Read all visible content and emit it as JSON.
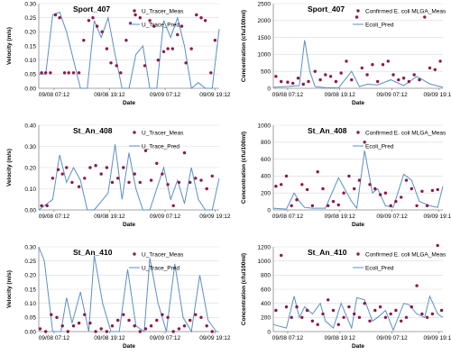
{
  "chart_data": [
    {
      "type": "line",
      "title": "Sport_407",
      "xlabel": "Date",
      "ylabel": "Velocity (m/s)",
      "xticks": [
        "09/08 07:12",
        "09/08 19:12",
        "09/09 07:12",
        "09/09 19:12"
      ],
      "ylim": [
        0,
        0.3
      ],
      "yticks": [
        "0.00",
        "0.05",
        "0.10",
        "0.15",
        "0.20",
        "0.25",
        "0.30"
      ],
      "legend_position": "top-right",
      "series": [
        {
          "name": "U_Tracer_Meas",
          "kind": "scatter",
          "color": "#8b1a4a",
          "x": [
            0.1,
            0.25,
            0.42,
            0.6,
            0.75,
            0.93,
            1.08,
            1.25,
            1.45,
            1.62,
            1.8,
            1.95,
            2.1,
            2.28,
            2.45,
            2.6,
            2.8,
            2.95,
            3.15,
            3.3,
            3.48,
            3.65,
            3.82,
            4.0,
            4.15,
            4.3,
            4.5,
            4.65,
            4.82,
            5.0,
            5.15,
            5.3,
            5.5,
            5.68,
            5.85,
            6.0,
            6.2,
            6.35
          ],
          "y": [
            0.055,
            0.055,
            0.055,
            0.26,
            0.25,
            0.055,
            0.055,
            0.055,
            0.055,
            0.17,
            0.24,
            0.25,
            0.22,
            0.2,
            0.14,
            0.09,
            0.08,
            0.055,
            0.17,
            0.23,
            0.26,
            0.25,
            0.08,
            0.24,
            0.22,
            0.1,
            0.13,
            0.14,
            0.14,
            0.19,
            0.22,
            0.09,
            0.14,
            0.26,
            0.25,
            0.24,
            0.055,
            0.17
          ]
        },
        {
          "name": "U_Trace_Pred",
          "kind": "line",
          "color": "#5b8fc7",
          "x": [
            0,
            0.25,
            0.5,
            0.75,
            1.0,
            1.25,
            1.5,
            1.75,
            2.0,
            2.25,
            2.5,
            2.75,
            3.0,
            3.25,
            3.5,
            3.75,
            4.0,
            4.25,
            4.5,
            4.75,
            5.0,
            5.25,
            5.5,
            5.75,
            6.0,
            6.25,
            6.5
          ],
          "y": [
            0.05,
            0.05,
            0.26,
            0.27,
            0.2,
            0.1,
            0.0,
            0.0,
            0.24,
            0.18,
            0.25,
            0.12,
            0.0,
            0.0,
            0.12,
            0.15,
            0.0,
            0.0,
            0.24,
            0.18,
            0.25,
            0.15,
            0.0,
            0.02,
            0.0,
            0.0,
            0.21
          ]
        }
      ]
    },
    {
      "type": "line",
      "title": "Sport_407",
      "xlabel": "Date",
      "ylabel": "Concentration (cfu/100ml)",
      "xticks": [
        "09/08 07:12",
        "09/08 19:12",
        "09/09 07:12",
        "09/09 19:12"
      ],
      "ylim": [
        0,
        2500
      ],
      "yticks": [
        "0",
        "500",
        "1000",
        "1500",
        "2000",
        "2500"
      ],
      "legend_position": "top-right",
      "series": [
        {
          "name": "Confirmed E. coli MLGA_Meas",
          "kind": "scatter",
          "color": "#8b1a4a",
          "x": [
            0.1,
            0.3,
            0.55,
            0.75,
            0.95,
            1.15,
            1.35,
            1.6,
            1.8,
            2.0,
            2.2,
            2.4,
            2.6,
            2.8,
            3.0,
            3.2,
            3.4,
            3.6,
            3.8,
            4.0,
            4.2,
            4.4,
            4.6,
            4.8,
            5.0,
            5.2,
            5.4,
            5.6,
            5.8,
            6.0,
            6.2,
            6.4
          ],
          "y": [
            350,
            200,
            180,
            150,
            300,
            120,
            200,
            500,
            250,
            400,
            350,
            200,
            450,
            800,
            250,
            2100,
            600,
            400,
            700,
            200,
            700,
            800,
            400,
            250,
            300,
            200,
            400,
            250,
            2100,
            600,
            550,
            800
          ]
        },
        {
          "name": "Ecoli_Pred",
          "kind": "line",
          "color": "#5b8fc7",
          "x": [
            0,
            0.5,
            1.0,
            1.2,
            1.4,
            1.6,
            2.0,
            2.5,
            3.0,
            3.3,
            3.6,
            4.0,
            4.5,
            5.0,
            5.5,
            6.0,
            6.5
          ],
          "y": [
            30,
            50,
            80,
            1420,
            500,
            50,
            20,
            10,
            500,
            50,
            120,
            100,
            250,
            80,
            350,
            130,
            30
          ]
        }
      ]
    },
    {
      "type": "line",
      "title": "St_An_408",
      "xlabel": "Date",
      "ylabel": "Velocity (m/s)",
      "xticks": [
        "09/08 07:12",
        "09/08 19:12",
        "09/09 07:12",
        "09/09 19:12"
      ],
      "ylim": [
        0,
        0.4
      ],
      "yticks": [
        "0.00",
        "0.10",
        "0.20",
        "0.30",
        "0.40"
      ],
      "legend_position": "top-right",
      "series": [
        {
          "name": "U_Tracer_Meas",
          "kind": "scatter",
          "color": "#8b1a4a",
          "x": [
            0.1,
            0.3,
            0.5,
            0.7,
            0.85,
            1.0,
            1.2,
            1.45,
            1.65,
            1.85,
            2.05,
            2.25,
            2.45,
            2.65,
            2.85,
            3.05,
            3.25,
            3.45,
            3.65,
            3.85,
            4.05,
            4.25,
            4.45,
            4.65,
            4.85,
            5.05,
            5.25,
            5.45,
            5.65,
            5.85,
            6.05,
            6.25
          ],
          "y": [
            0.02,
            0.02,
            0.15,
            0.19,
            0.17,
            0.2,
            0.13,
            0.11,
            0.15,
            0.2,
            0.21,
            0.17,
            0.2,
            0.13,
            0.15,
            0.2,
            0.13,
            0.17,
            0.13,
            0.28,
            0.14,
            0.22,
            0.17,
            0.12,
            0.02,
            0.13,
            0.27,
            0.13,
            0.15,
            0.14,
            0.1,
            0.16
          ]
        },
        {
          "name": "U_Trace_Pred",
          "kind": "line",
          "color": "#5b8fc7",
          "x": [
            0,
            0.5,
            0.75,
            1.0,
            1.25,
            1.5,
            1.75,
            2.0,
            2.5,
            2.75,
            3.0,
            3.25,
            3.5,
            3.75,
            4.0,
            4.5,
            4.75,
            5.0,
            5.25,
            5.5,
            5.75,
            6.0,
            6.25,
            6.5
          ],
          "y": [
            0.0,
            0.05,
            0.26,
            0.13,
            0.2,
            0.14,
            0.0,
            0.0,
            0.08,
            0.31,
            0.05,
            0.27,
            0.1,
            0.0,
            0.0,
            0.2,
            0.05,
            0.14,
            0.03,
            0.2,
            0.05,
            0.0,
            0.0,
            0.15
          ]
        }
      ]
    },
    {
      "type": "line",
      "title": "St_An_408",
      "xlabel": "Date",
      "ylabel": "Concentration (cfu/100ml)",
      "xticks": [
        "09/08 07:12",
        "09/08 19:12",
        "09/09 07:12",
        "09/09 19:12"
      ],
      "ylim": [
        0,
        1000
      ],
      "yticks": [
        "0",
        "200",
        "400",
        "600",
        "800",
        "1000"
      ],
      "legend_position": "top-right",
      "series": [
        {
          "name": "Confirmed E. coli MLGA_Meas",
          "kind": "scatter",
          "color": "#8b1a4a",
          "x": [
            0.1,
            0.3,
            0.5,
            0.7,
            0.9,
            1.1,
            1.3,
            1.5,
            1.7,
            1.9,
            2.1,
            2.3,
            2.5,
            2.7,
            2.9,
            3.1,
            3.3,
            3.5,
            3.7,
            3.9,
            4.1,
            4.3,
            4.5,
            4.7,
            4.9,
            5.1,
            5.3,
            5.5,
            5.7,
            5.9,
            6.1,
            6.3
          ],
          "y": [
            280,
            300,
            400,
            50,
            120,
            300,
            240,
            50,
            450,
            250,
            50,
            100,
            60,
            200,
            400,
            250,
            350,
            800,
            300,
            250,
            180,
            200,
            50,
            100,
            150,
            350,
            250,
            50,
            220,
            50,
            230,
            240
          ]
        },
        {
          "name": "Ecoli_Pred",
          "kind": "line",
          "color": "#5b8fc7",
          "x": [
            0,
            0.5,
            0.8,
            1.0,
            1.2,
            1.5,
            2.0,
            2.5,
            3.0,
            3.2,
            3.5,
            3.8,
            4.0,
            4.3,
            4.6,
            5.0,
            5.3,
            5.6,
            6.0,
            6.3,
            6.5
          ],
          "y": [
            20,
            10,
            200,
            100,
            30,
            20,
            20,
            380,
            100,
            20,
            700,
            200,
            250,
            50,
            30,
            420,
            350,
            100,
            50,
            30,
            280
          ]
        }
      ]
    },
    {
      "type": "line",
      "title": "St_An_410",
      "xlabel": "Date",
      "ylabel": "Velocity (m/s)",
      "xticks": [
        "09/08 07:12",
        "09/08 19:12",
        "09/09 07:12",
        "09/09 19:12"
      ],
      "ylim": [
        0,
        0.3
      ],
      "yticks": [
        "0.00",
        "0.05",
        "0.10",
        "0.15",
        "0.20",
        "0.25",
        "0.30"
      ],
      "legend_position": "top-right",
      "series": [
        {
          "name": "U_Tracer_Meas",
          "kind": "scatter",
          "color": "#8b1a4a",
          "x": [
            0.05,
            0.25,
            0.45,
            0.65,
            0.85,
            1.05,
            1.25,
            1.45,
            1.65,
            1.85,
            2.05,
            2.25,
            2.45,
            2.65,
            2.85,
            3.05,
            3.25,
            3.45,
            3.65,
            3.85,
            4.05,
            4.25,
            4.45,
            4.65,
            4.85,
            5.05,
            5.25,
            5.45,
            5.65,
            5.85,
            6.05,
            6.25
          ],
          "y": [
            0.01,
            0.0,
            0.06,
            0.05,
            0.02,
            0.0,
            0.02,
            0.03,
            0.06,
            0.03,
            0.0,
            0.01,
            0.0,
            0.02,
            0.04,
            0.06,
            0.04,
            0.02,
            0.0,
            0.01,
            0.02,
            0.04,
            0.06,
            0.05,
            0.0,
            0.01,
            0.02,
            0.04,
            0.06,
            0.05,
            0.02,
            0.0
          ]
        },
        {
          "name": "U_Trace_Pred",
          "kind": "line",
          "color": "#5b8fc7",
          "x": [
            0,
            0.2,
            0.5,
            0.8,
            1.0,
            1.2,
            1.5,
            1.8,
            2.0,
            2.3,
            2.6,
            2.9,
            3.2,
            3.5,
            3.8,
            4.0,
            4.3,
            4.6,
            4.9,
            5.2,
            5.5,
            5.8,
            6.1,
            6.4
          ],
          "y": [
            0.3,
            0.25,
            0.0,
            0.0,
            0.12,
            0.03,
            0.14,
            0.0,
            0.27,
            0.1,
            0.0,
            0.0,
            0.22,
            0.02,
            0.0,
            0.26,
            0.1,
            0.0,
            0.24,
            0.05,
            0.0,
            0.2,
            0.04,
            0.0
          ]
        }
      ]
    },
    {
      "type": "line",
      "title": "St_An_410",
      "xlabel": "Date",
      "ylabel": "Concentration (cfu/100ml)",
      "xticks": [
        "09/08 07:12",
        "09/08 19:12",
        "09/09 07:12",
        "09/09 19:12"
      ],
      "ylim": [
        0,
        1200
      ],
      "yticks": [
        "0",
        "200",
        "400",
        "600",
        "800",
        "1000",
        "1200"
      ],
      "legend_position": "top-right",
      "series": [
        {
          "name": "Confirmed E. coli MLGA_Meas",
          "kind": "scatter",
          "color": "#8b1a4a",
          "x": [
            0.1,
            0.3,
            0.5,
            0.7,
            0.9,
            1.1,
            1.3,
            1.5,
            1.7,
            1.9,
            2.1,
            2.3,
            2.5,
            2.7,
            2.9,
            3.1,
            3.3,
            3.5,
            3.7,
            3.9,
            4.1,
            4.3,
            4.5,
            4.7,
            4.9,
            5.1,
            5.3,
            5.5,
            5.7,
            5.9,
            6.1,
            6.3,
            6.45
          ],
          "y": [
            300,
            1080,
            350,
            200,
            350,
            200,
            300,
            150,
            100,
            250,
            450,
            300,
            100,
            200,
            350,
            250,
            200,
            400,
            150,
            300,
            350,
            200,
            250,
            300,
            150,
            200,
            350,
            650,
            250,
            200,
            250,
            1220,
            300
          ]
        },
        {
          "name": "Ecoli_Pred",
          "kind": "line",
          "color": "#5b8fc7",
          "x": [
            0,
            0.5,
            0.8,
            1.0,
            1.2,
            1.5,
            1.8,
            2.0,
            2.3,
            2.6,
            3.0,
            3.2,
            3.5,
            3.8,
            4.0,
            4.3,
            4.6,
            5.0,
            5.2,
            5.5,
            5.8,
            6.0,
            6.3,
            6.5
          ],
          "y": [
            100,
            50,
            500,
            200,
            350,
            250,
            400,
            150,
            50,
            400,
            50,
            480,
            450,
            150,
            200,
            300,
            20,
            400,
            380,
            250,
            200,
            500,
            250,
            200
          ]
        }
      ]
    }
  ]
}
